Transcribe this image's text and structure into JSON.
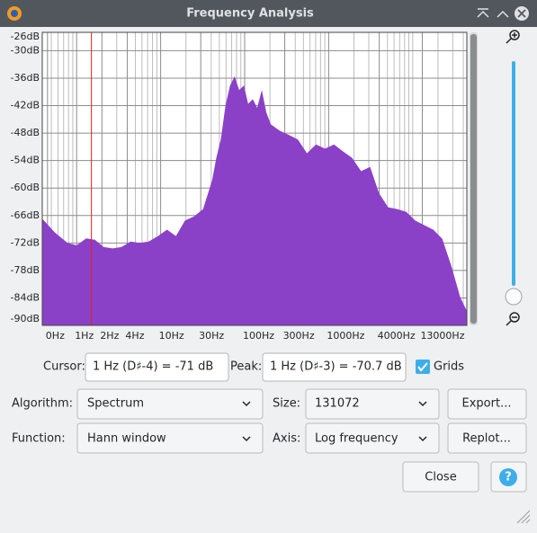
{
  "window": {
    "title": "Frequency Analysis"
  },
  "chart_data": {
    "type": "area",
    "xscale": "log",
    "grid": true,
    "color": "#8b40c8",
    "cursor_x": 1.5,
    "x": [
      0.39,
      0.55,
      0.78,
      1.0,
      1.3,
      1.65,
      2.1,
      2.7,
      3.4,
      4.4,
      5.6,
      7.2,
      9.3,
      11.9,
      15.2,
      19.5,
      25,
      32,
      41,
      46,
      52,
      59,
      67,
      76,
      86,
      98,
      110,
      125,
      141,
      160,
      181,
      205,
      262,
      336,
      430,
      551,
      706,
      904,
      1157,
      1482,
      1898,
      2430,
      3112,
      3985,
      5100,
      6530,
      8365,
      10710,
      13720,
      17560,
      22500,
      28800,
      36860,
      43950
    ],
    "values": [
      -66.7,
      -69.7,
      -72,
      -72.5,
      -71,
      -71.3,
      -72.9,
      -73.2,
      -72.9,
      -71.7,
      -72,
      -71.7,
      -70.5,
      -69.1,
      -70.5,
      -67.1,
      -66.2,
      -64.6,
      -58.3,
      -53.4,
      -49.4,
      -42.1,
      -37.6,
      -35.6,
      -38.6,
      -37.6,
      -41.6,
      -40.6,
      -42.5,
      -38.6,
      -43.5,
      -46.1,
      -47.5,
      -48.4,
      -49.4,
      -52.4,
      -50.5,
      -51.4,
      -50.5,
      -52,
      -53.4,
      -56.3,
      -55.4,
      -61.2,
      -64.2,
      -64.6,
      -65.2,
      -67.1,
      -68.1,
      -69.1,
      -71.1,
      -77,
      -83.9,
      -86.8
    ],
    "xlim": [
      0.39,
      44100
    ],
    "ylim": [
      -90,
      -26
    ],
    "yticks": [
      {
        "value": -26,
        "label": "-26dB"
      },
      {
        "value": -30,
        "label": "-30dB"
      },
      {
        "value": -36,
        "label": "-36dB"
      },
      {
        "value": -42,
        "label": "-42dB"
      },
      {
        "value": -48,
        "label": "-48dB"
      },
      {
        "value": -54,
        "label": "-54dB"
      },
      {
        "value": -60,
        "label": "-60dB"
      },
      {
        "value": -66,
        "label": "-66dB"
      },
      {
        "value": -72,
        "label": "-72dB"
      },
      {
        "value": -78,
        "label": "-78dB"
      },
      {
        "value": -84,
        "label": "-84dB"
      },
      {
        "value": -90,
        "label": "-90dB"
      }
    ],
    "xticks": [
      {
        "value": 0.45,
        "label": "0Hz"
      },
      {
        "value": 1,
        "label": "1Hz"
      },
      {
        "value": 2,
        "label": "2Hz"
      },
      {
        "value": 4,
        "label": "4Hz"
      },
      {
        "value": 10,
        "label": "10Hz"
      },
      {
        "value": 30,
        "label": "30Hz"
      },
      {
        "value": 100,
        "label": "100Hz"
      },
      {
        "value": 300,
        "label": "300Hz"
      },
      {
        "value": 1000,
        "label": "1000Hz"
      },
      {
        "value": 4000,
        "label": "4000Hz"
      },
      {
        "value": 13000,
        "label": "13000Hz"
      }
    ],
    "xminorticks": [
      0.5,
      0.6,
      0.7,
      0.8,
      0.9,
      3,
      5,
      6,
      7,
      8,
      9,
      20,
      40,
      50,
      60,
      70,
      80,
      90,
      200,
      400,
      500,
      600,
      700,
      800,
      900,
      2000,
      3000,
      5000,
      6000,
      7000,
      8000,
      9000,
      10000,
      20000,
      30000,
      40000
    ]
  },
  "controls": {
    "cursor_label": "Cursor:",
    "cursor_value": "1 Hz (D♯-4) = -71 dB",
    "peak_label": "Peak:",
    "peak_value": "1 Hz (D♯-3) = -70.7 dB",
    "grids_label": "Grids",
    "algorithm_label": "Algorithm:",
    "algorithm_value": "Spectrum",
    "size_label": "Size:",
    "size_value": "131072",
    "export_button": "Export...",
    "function_label": "Function:",
    "function_value": "Hann window",
    "axis_label": "Axis:",
    "axis_value": "Log frequency",
    "replot_button": "Replot...",
    "close_button": "Close",
    "help_button": "?"
  }
}
